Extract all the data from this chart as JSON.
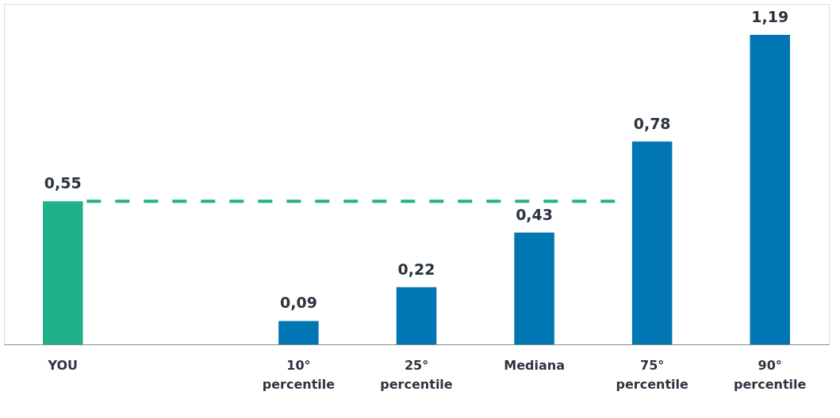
{
  "chart_data": {
    "type": "bar",
    "categories": [
      "YOU",
      null,
      "10° percentile",
      "25° percentile",
      "Mediana",
      "75° percentile",
      "90° percentile"
    ],
    "values": [
      0.55,
      null,
      0.09,
      0.22,
      0.43,
      0.78,
      1.19
    ],
    "value_labels": [
      "0,55",
      null,
      "0,09",
      "0,22",
      "0,43",
      "0,78",
      "1,19"
    ],
    "colors": [
      "#20b08c",
      "#0077b3",
      "#0077b3",
      "#0077b3",
      "#0077b3",
      "#0077b3",
      "#0077b3"
    ],
    "grid": false,
    "tick_labels": "x",
    "ref_lines": [
      {
        "axis": "y",
        "value": 0.55,
        "color": "#20b08c",
        "line_style": "dashed"
      }
    ]
  }
}
